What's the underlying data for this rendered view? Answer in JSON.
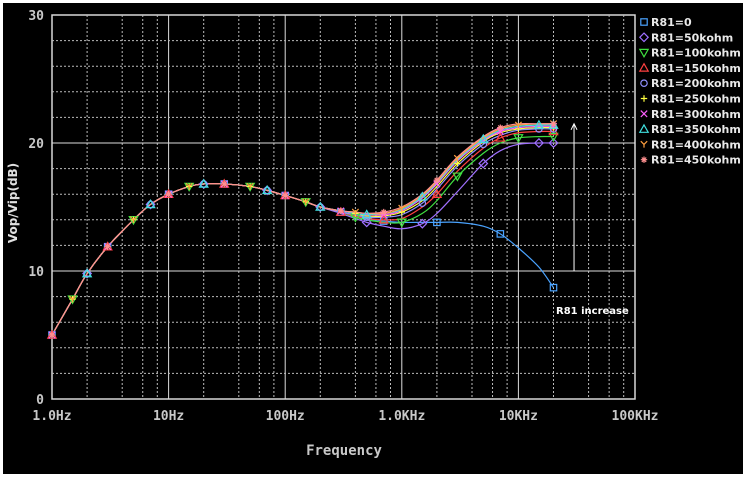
{
  "chart_data": {
    "type": "line",
    "xscale": "log",
    "xlim": [
      1,
      100000
    ],
    "ylim": [
      0,
      30
    ],
    "xlabel": "Frequency",
    "ylabel": "Vop/Vip(dB)",
    "x_tick_labels": [
      "1.0Hz",
      "10Hz",
      "100Hz",
      "1.0KHz",
      "10KHz",
      "100KHz"
    ],
    "x_tick_values": [
      1,
      10,
      100,
      1000,
      10000,
      100000
    ],
    "y_tick_labels": [
      "0",
      "10",
      "20",
      "30"
    ],
    "y_tick_values": [
      0,
      10,
      20,
      30
    ],
    "grid": true,
    "legend_position": "right",
    "annotation": {
      "text": "R81 increase",
      "arrow_x": 30000,
      "arrow_y_from": 10,
      "arrow_y_to": 21.5
    },
    "x": [
      1,
      1.5,
      2,
      3,
      5,
      7,
      10,
      15,
      20,
      30,
      50,
      70,
      100,
      150,
      200,
      300,
      400,
      500,
      700,
      1000,
      1500,
      2000,
      3000,
      5000,
      7000,
      10000,
      15000,
      20000
    ],
    "series": [
      {
        "name": "R81=0",
        "color": "#4aa3ff",
        "marker": "square",
        "values": [
          5.0,
          7.8,
          9.8,
          11.9,
          14.0,
          15.2,
          16.0,
          16.6,
          16.8,
          16.8,
          16.6,
          16.3,
          15.9,
          15.4,
          15.0,
          14.6,
          14.3,
          14.1,
          13.9,
          13.8,
          13.8,
          13.8,
          13.8,
          13.5,
          12.9,
          11.8,
          10.3,
          8.7
        ]
      },
      {
        "name": "R81=50kohm",
        "color": "#a070ff",
        "marker": "diamond",
        "values": [
          5.0,
          7.8,
          9.8,
          11.9,
          14.0,
          15.2,
          16.0,
          16.6,
          16.8,
          16.8,
          16.6,
          16.3,
          15.9,
          15.4,
          15.0,
          14.5,
          14.1,
          13.8,
          13.5,
          13.3,
          13.7,
          14.5,
          16.2,
          18.4,
          19.4,
          19.9,
          20.0,
          20.0
        ]
      },
      {
        "name": "R81=100kohm",
        "color": "#40e040",
        "marker": "triangle-down",
        "values": [
          5.0,
          7.8,
          9.8,
          11.9,
          14.0,
          15.2,
          16.0,
          16.6,
          16.8,
          16.8,
          16.6,
          16.3,
          15.9,
          15.4,
          15.0,
          14.6,
          14.2,
          14.0,
          13.8,
          13.8,
          14.5,
          15.5,
          17.4,
          19.2,
          20.0,
          20.4,
          20.5,
          20.5
        ]
      },
      {
        "name": "R81=150kohm",
        "color": "#ff4040",
        "marker": "triangle",
        "values": [
          5.0,
          7.8,
          9.8,
          11.9,
          14.0,
          15.2,
          16.0,
          16.6,
          16.8,
          16.8,
          16.6,
          16.3,
          15.9,
          15.4,
          15.0,
          14.6,
          14.3,
          14.1,
          14.0,
          14.1,
          15.0,
          16.0,
          17.8,
          19.6,
          20.4,
          20.8,
          20.9,
          20.9
        ]
      },
      {
        "name": "R81=200kohm",
        "color": "#9090ff",
        "marker": "circle",
        "values": [
          5.0,
          7.8,
          9.8,
          11.9,
          14.0,
          15.2,
          16.0,
          16.6,
          16.8,
          16.8,
          16.6,
          16.3,
          15.9,
          15.4,
          15.0,
          14.6,
          14.4,
          14.2,
          14.2,
          14.4,
          15.3,
          16.4,
          18.2,
          19.9,
          20.6,
          21.0,
          21.1,
          21.1
        ]
      },
      {
        "name": "R81=250kohm",
        "color": "#ffff40",
        "marker": "plus",
        "values": [
          5.0,
          7.8,
          9.8,
          11.9,
          14.0,
          15.2,
          16.0,
          16.6,
          16.8,
          16.8,
          16.6,
          16.3,
          15.9,
          15.4,
          15.0,
          14.7,
          14.5,
          14.3,
          14.3,
          14.6,
          15.5,
          16.6,
          18.4,
          20.1,
          20.8,
          21.1,
          21.2,
          21.2
        ]
      },
      {
        "name": "R81=300kohm",
        "color": "#ff60ff",
        "marker": "x",
        "values": [
          5.0,
          7.8,
          9.8,
          11.9,
          14.0,
          15.2,
          16.0,
          16.6,
          16.8,
          16.8,
          16.6,
          16.3,
          15.9,
          15.4,
          15.0,
          14.7,
          14.5,
          14.4,
          14.4,
          14.7,
          15.7,
          16.8,
          18.6,
          20.2,
          20.9,
          21.2,
          21.3,
          21.3
        ]
      },
      {
        "name": "R81=350kohm",
        "color": "#40e0e0",
        "marker": "triangle",
        "values": [
          5.0,
          7.8,
          9.8,
          11.9,
          14.0,
          15.2,
          16.0,
          16.6,
          16.8,
          16.8,
          16.6,
          16.3,
          15.9,
          15.4,
          15.0,
          14.7,
          14.5,
          14.4,
          14.5,
          14.8,
          15.8,
          16.9,
          18.7,
          20.3,
          21.0,
          21.3,
          21.4,
          21.4
        ]
      },
      {
        "name": "R81=400kohm",
        "color": "#ffa040",
        "marker": "y",
        "values": [
          5.0,
          7.8,
          9.8,
          11.9,
          14.0,
          15.2,
          16.0,
          16.6,
          16.8,
          16.8,
          16.6,
          16.3,
          15.9,
          15.4,
          15.0,
          14.7,
          14.6,
          14.5,
          14.5,
          14.9,
          15.9,
          17.0,
          18.8,
          20.4,
          21.1,
          21.4,
          21.5,
          21.5
        ]
      },
      {
        "name": "R81=450kohm",
        "color": "#ff9090",
        "marker": "star",
        "values": [
          5.0,
          7.8,
          9.8,
          11.9,
          14.0,
          15.2,
          16.0,
          16.6,
          16.8,
          16.8,
          16.6,
          16.3,
          15.9,
          15.4,
          15.0,
          14.7,
          14.6,
          14.5,
          14.6,
          15.0,
          16.0,
          17.1,
          18.9,
          20.5,
          21.2,
          21.5,
          21.5,
          21.5
        ]
      }
    ]
  }
}
